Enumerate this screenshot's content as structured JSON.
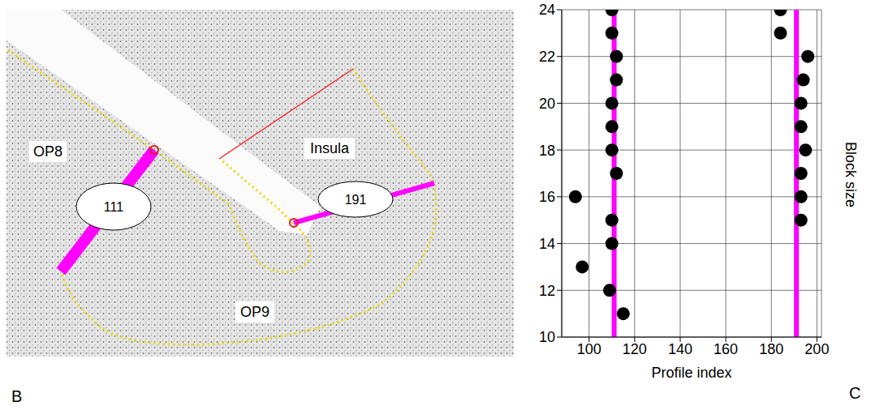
{
  "panel_b": {
    "letter": "B",
    "regions": [
      "OP8",
      "Insula",
      "OP9"
    ],
    "profiles": [
      111,
      191
    ]
  },
  "chart_data": {
    "type": "scatter",
    "letter": "C",
    "x_label": "Profile index",
    "y_label": "Block size",
    "x": [
      110,
      110,
      112,
      112,
      110,
      110,
      110,
      112,
      94,
      110,
      110,
      97,
      109,
      115,
      184,
      184,
      196,
      194,
      193,
      193,
      195,
      193,
      193,
      193
    ],
    "values": [
      24,
      23,
      22,
      21,
      20,
      19,
      18,
      17,
      16,
      15,
      14,
      13,
      12,
      11,
      24,
      23,
      22,
      21,
      20,
      19,
      18,
      17,
      16,
      15
    ],
    "color": "#000000",
    "marker": "circle",
    "vertical_lines": [
      111,
      191
    ],
    "vertical_line_color": "#ff00ff",
    "xlim": [
      88,
      202
    ],
    "xticks": [
      100,
      120,
      140,
      160,
      180,
      200
    ],
    "ylim": [
      10,
      24
    ],
    "yticks": [
      10,
      12,
      14,
      16,
      18,
      20,
      22,
      24
    ],
    "grid": true
  }
}
